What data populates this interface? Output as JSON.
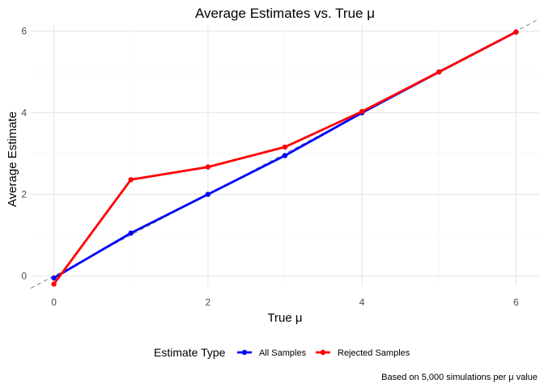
{
  "chart_data": {
    "type": "line",
    "title": "Average Estimates vs. True μ",
    "xlabel": "True μ",
    "ylabel": "Average Estimate",
    "x": [
      0,
      1,
      2,
      3,
      4,
      5,
      6
    ],
    "xlim": [
      -0.3,
      6.3
    ],
    "ylim": [
      -0.25,
      6.15
    ],
    "x_ticks": [
      "0",
      "2",
      "4",
      "6"
    ],
    "y_ticks": [
      "0",
      "2",
      "4",
      "6"
    ],
    "grid": true,
    "reference_line": {
      "style": "dashed",
      "color": "#808080",
      "slope": 1,
      "intercept": 0
    },
    "series": [
      {
        "name": "All Samples",
        "color": "#0000ff",
        "values": [
          -0.05,
          1.05,
          2.0,
          2.95,
          4.0,
          5.0,
          5.98
        ]
      },
      {
        "name": "Rejected Samples",
        "color": "#ff0000",
        "values": [
          -0.2,
          2.36,
          2.67,
          3.16,
          4.03,
          5.0,
          5.98
        ]
      }
    ],
    "legend": {
      "title": "Estimate Type",
      "position": "bottom"
    },
    "caption": "Based on 5,000 simulations per μ value"
  }
}
